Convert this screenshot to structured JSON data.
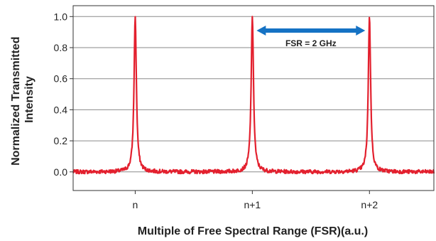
{
  "chart_data": {
    "type": "line",
    "xlabel": "Multiple of Free Spectral Range (FSR)(a.u.)",
    "ylabel_lines": [
      "Normalized Transmitted",
      "Intensity"
    ],
    "x_ticks": [
      {
        "value": 0,
        "label": "n"
      },
      {
        "value": 1,
        "label": "n+1"
      },
      {
        "value": 2,
        "label": "n+2"
      }
    ],
    "xlim": [
      -0.53,
      2.55
    ],
    "ylim": [
      -0.12,
      1.07
    ],
    "y_ticks": [
      {
        "value": 0.0,
        "label": "0.0"
      },
      {
        "value": 0.2,
        "label": "0.2"
      },
      {
        "value": 0.4,
        "label": "0.4"
      },
      {
        "value": 0.6,
        "label": "0.6"
      },
      {
        "value": 0.8,
        "label": "0.8"
      },
      {
        "value": 1.0,
        "label": "1.0"
      }
    ],
    "grid": "horizontal",
    "series": [
      {
        "color": "#e3202e",
        "peaks": [
          {
            "x": 0,
            "y": 1.0
          },
          {
            "x": 1,
            "y": 1.0
          },
          {
            "x": 2,
            "y": 1.0
          }
        ],
        "peak_width_fsr": 0.012,
        "baseline": 0.0
      }
    ],
    "annotations": [
      {
        "text": "FSR = 2 GHz",
        "x_start": 1,
        "x_end": 2,
        "y": 0.91,
        "color": "#1572c4"
      }
    ]
  }
}
